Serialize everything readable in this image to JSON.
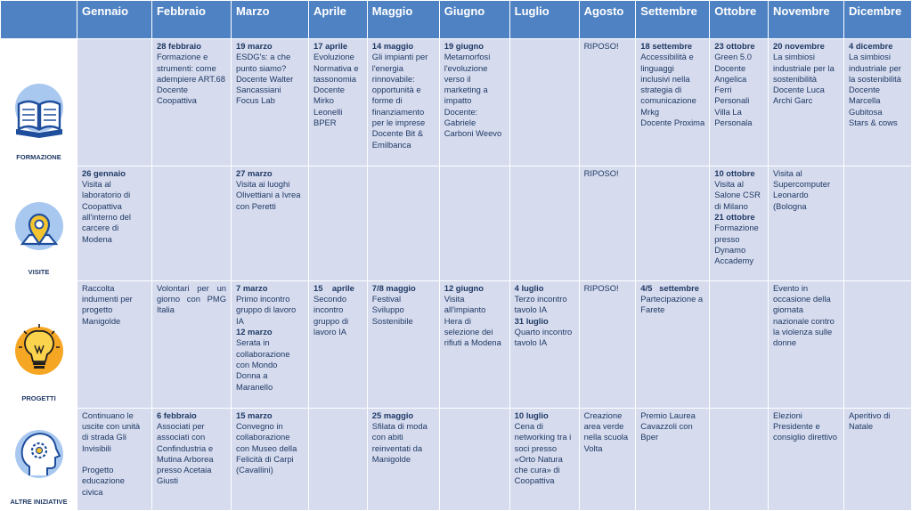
{
  "months": [
    "Gennaio",
    "Febbraio",
    "Marzo",
    "Aprile",
    "Maggio",
    "Giugno",
    "Luglio",
    "Agosto",
    "Settembre",
    "Ottobre",
    "Novembre",
    "Dicembre"
  ],
  "rows": [
    {
      "id": "formazione",
      "label": "FORMAZIONE",
      "icon": "open-book-icon",
      "cells": [
        [],
        [
          {
            "t": "28 febbraio",
            "b": true
          },
          {
            "t": "Formazione e strumenti: come adempiere ART.68"
          },
          {
            "t": "Docente Coopattiva"
          }
        ],
        [
          {
            "t": "19 marzo",
            "b": true
          },
          {
            "t": "ESDG's: a che punto siamo?"
          },
          {
            "t": "Docente Walter Sancassiani Focus Lab"
          }
        ],
        [
          {
            "t": "17 aprile",
            "b": true
          },
          {
            "t": "Evoluzione Normativa e tassonomia"
          },
          {
            "t": "Docente Mirko Leonelli"
          },
          {
            "t": "BPER"
          }
        ],
        [
          {
            "t": "14 maggio",
            "b": true
          },
          {
            "t": "Gli impianti per l'energia rinnovabile: opportunità e forme di finanziamento per le imprese"
          },
          {
            "t": "Docente Bit & Emilbanca"
          }
        ],
        [
          {
            "t": "19 giugno",
            "b": true
          },
          {
            "t": "Metamorfosi l'evoluzione verso il marketing a impatto"
          },
          {
            "t": "Docente: Gabriele Carboni Weevo"
          }
        ],
        [],
        [
          {
            "t": "RIPOSO!"
          }
        ],
        [
          {
            "t": "18 settembre",
            "b": true
          },
          {
            "t": "Accessibilità e linguaggi inclusivi nella strategia di comunicazione"
          },
          {
            "t": "Mrkg"
          },
          {
            "t": "Docente Proxima"
          }
        ],
        [
          {
            "t": "23 ottobre",
            "b": true
          },
          {
            "t": "Green 5.0"
          },
          {
            "t": "Docente Angelica Ferri Personali"
          },
          {
            "t": "Villa La Personala"
          }
        ],
        [
          {
            "t": "20 novembre",
            "b": true
          },
          {
            "t": "La simbiosi industriale per la sostenibilità"
          },
          {
            "t": "Docente Luca Archi Garc"
          }
        ],
        [
          {
            "t": "4 dicembre",
            "b": true
          },
          {
            "t": "La simbiosi industriale per la sostenibilità"
          },
          {
            "t": "Docente Marcella Gubitosa"
          },
          {
            "t": "Stars & cows"
          }
        ]
      ]
    },
    {
      "id": "visite",
      "label": "VISITE",
      "icon": "location-pin-icon",
      "cells": [
        [
          {
            "t": "26 gennaio",
            "b": true
          },
          {
            "t": "Visita al laboratorio di Coopattiva all'interno del carcere di Modena"
          }
        ],
        [],
        [
          {
            "t": "27 marzo",
            "b": true
          },
          {
            "t": "Visita ai luoghi Olivettiani a Ivrea con Peretti"
          }
        ],
        [],
        [],
        [],
        [],
        [
          {
            "t": "RIPOSO!"
          }
        ],
        [],
        [
          {
            "t": "10 ottobre",
            "b": true
          },
          {
            "t": "Visita al Salone CSR di Milano"
          },
          {
            "t": "21 ottobre",
            "b": true
          },
          {
            "t": "Formazione presso Dynamo Accademy"
          }
        ],
        [
          {
            "t": "Visita al Supercomputer Leonardo (Bologna"
          }
        ],
        []
      ]
    },
    {
      "id": "progetti",
      "label": "PROGETTI",
      "icon": "lightbulb-icon",
      "cells": [
        [
          {
            "t": "Raccolta indumenti per progetto Manigolde"
          }
        ],
        [
          {
            "t": "Volontari per un giorno con PMG Italia",
            "j": true
          }
        ],
        [
          {
            "t": "7 marzo",
            "b": true
          },
          {
            "t": "Primo incontro gruppo di lavoro IA"
          },
          {
            "t": "12 marzo",
            "b": true
          },
          {
            "t": "Serata in collaborazione con Mondo Donna a Maranello"
          }
        ],
        [
          {
            "t": "15    aprile",
            "b": true
          },
          {
            "t": "Secondo incontro gruppo di lavoro IA"
          }
        ],
        [
          {
            "t": "7/8 maggio",
            "b": true
          },
          {
            "t": "Festival Sviluppo Sostenibile"
          }
        ],
        [
          {
            "t": "12 giugno",
            "b": true
          },
          {
            "t": "Visita all'impianto Hera di selezione dei rifiuti a Modena"
          }
        ],
        [
          {
            "t": "4 luglio",
            "b": true
          },
          {
            "t": "Terzo incontro tavolo IA"
          },
          {
            "t": "31 luglio",
            "b": true
          },
          {
            "t": "Quarto incontro tavolo IA"
          }
        ],
        [
          {
            "t": "RIPOSO!"
          }
        ],
        [
          {
            "t": "4/5   settembre",
            "b": true
          },
          {
            "t": "Partecipazione a Farete"
          }
        ],
        [],
        [
          {
            "t": "Evento in occasione della giornata nazionale contro la violenza sulle donne"
          }
        ],
        []
      ]
    },
    {
      "id": "altre-iniziative",
      "label": "ALTRE INIZIATIVE",
      "icon": "head-gear-icon",
      "cells": [
        [
          {
            "t": "Continuano le uscite con unità di strada Gli Invisibili"
          },
          {
            "t": " "
          },
          {
            "t": "Progetto educazione civica"
          }
        ],
        [
          {
            "t": "6 febbraio",
            "b": true
          },
          {
            "t": "Associati per associati con Confindustria e Mutina Arborea presso Acetaia Giusti"
          }
        ],
        [
          {
            "t": "15 marzo",
            "b": true
          },
          {
            "t": "Convegno in collaborazione con Museo della Felicità di Carpi (Cavallini)"
          }
        ],
        [],
        [
          {
            "t": "25 maggio",
            "b": true
          },
          {
            "t": "Sfilata di moda con abiti reinventati da Manigolde"
          }
        ],
        [],
        [
          {
            "t": "10 luglio",
            "b": true
          },
          {
            "t": "Cena di networking tra i soci presso «Orto Natura che cura» di Coopattiva"
          }
        ],
        [
          {
            "t": "Creazione area verde nella scuola Volta"
          }
        ],
        [
          {
            "t": "Premio Laurea Cavazzoli con Bper"
          }
        ],
        [],
        [
          {
            "t": "Elezioni Presidente e consiglio direttivo"
          }
        ],
        [
          {
            "t": "Aperitivo di Natale"
          }
        ]
      ]
    }
  ],
  "colors": {
    "header_bg": "#4f82c3",
    "cell_bg": "#d6dcee",
    "text": "#1f3864",
    "icon_dark": "#1f4e9c",
    "icon_light": "#a9c8f0",
    "pin_yellow": "#f4c430",
    "bulb_orange": "#f5a623",
    "bulb_yellow": "#fbd34d"
  }
}
